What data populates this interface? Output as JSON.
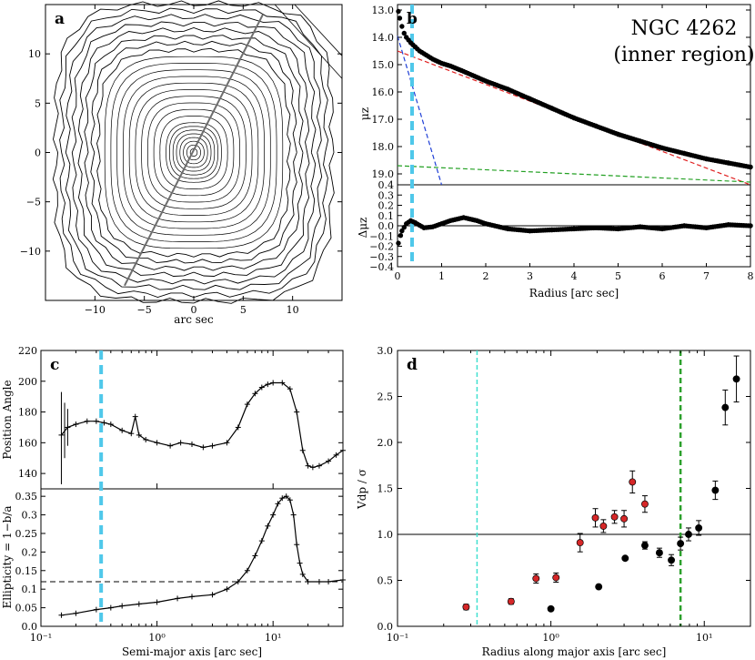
{
  "chart_data": [
    {
      "panel": "a",
      "type": "contour",
      "panel_label": "a",
      "xlabel": "arc sec",
      "x_ticks": [
        "−10",
        "−5",
        "0",
        "5",
        "10"
      ],
      "y_ticks": [
        "10",
        "5",
        "0",
        "−5",
        "−10"
      ],
      "xlim": [
        -15,
        15
      ],
      "ylim": [
        -15,
        15
      ],
      "major_axis_line": {
        "from": [
          -7,
          -13.5
        ],
        "to": [
          7,
          14
        ]
      }
    },
    {
      "panel": "b",
      "type": "scatter",
      "panel_label": "b",
      "title_line1": "NGC 4262",
      "title_line2": "(inner region)",
      "xlabel": "Radius [arc sec]",
      "ylabel_top": "μz",
      "ylabel_bottom": "Δμz",
      "x_ticks": [
        "0",
        "1",
        "2",
        "3",
        "4",
        "5",
        "6",
        "7",
        "8"
      ],
      "y_ticks_top": [
        "13.0",
        "14.0",
        "15.0",
        "16.0",
        "17.0",
        "18.0",
        "19.0",
        "0.4"
      ],
      "y_ticks_bottom": [
        "0.4",
        "0.3",
        "0.2",
        "0.1",
        "0.0",
        "−0.1",
        "−0.2",
        "−0.3",
        "−0.4"
      ],
      "xlim": [
        0,
        8
      ],
      "ylim_top": [
        19.4,
        12.8
      ],
      "ylim_bottom": [
        -0.4,
        0.4
      ],
      "vline_x": 0.33,
      "series": [
        {
          "name": "profile",
          "x": [
            0.02,
            0.05,
            0.1,
            0.15,
            0.2,
            0.3,
            0.4,
            0.5,
            0.6,
            0.8,
            1.0,
            1.2,
            1.5,
            2.0,
            2.5,
            3.0,
            3.5,
            4.0,
            4.5,
            5.0,
            5.5,
            6.0,
            6.5,
            7.0,
            7.5,
            8.0
          ],
          "y": [
            13.05,
            13.3,
            13.6,
            13.85,
            14.0,
            14.2,
            14.35,
            14.5,
            14.6,
            14.8,
            14.95,
            15.05,
            15.25,
            15.6,
            15.9,
            16.25,
            16.6,
            16.95,
            17.25,
            17.55,
            17.8,
            18.05,
            18.25,
            18.45,
            18.6,
            18.75
          ]
        },
        {
          "name": "inner component",
          "x": [
            0.0,
            1.0
          ],
          "y": [
            13.95,
            19.4
          ]
        },
        {
          "name": "exponential",
          "x": [
            0.0,
            8.0
          ],
          "y": [
            14.5,
            19.5
          ]
        },
        {
          "name": "outer component",
          "x": [
            0.0,
            8.0
          ],
          "y": [
            18.7,
            19.3
          ]
        },
        {
          "name": "residuals",
          "x": [
            0.02,
            0.1,
            0.2,
            0.3,
            0.4,
            0.6,
            0.8,
            1.0,
            1.2,
            1.5,
            1.8,
            2.0,
            2.5,
            3.0,
            3.5,
            4.0,
            4.5,
            5.0,
            5.5,
            6.0,
            6.5,
            7.0,
            7.5,
            8.0
          ],
          "y": [
            -0.17,
            -0.05,
            0.02,
            0.05,
            0.03,
            -0.02,
            -0.01,
            0.02,
            0.05,
            0.08,
            0.05,
            0.02,
            -0.03,
            -0.05,
            -0.04,
            -0.03,
            -0.02,
            -0.03,
            -0.01,
            -0.03,
            0.0,
            -0.02,
            0.01,
            0.0
          ]
        }
      ]
    },
    {
      "panel": "c",
      "type": "line",
      "panel_label": "c",
      "xlabel": "Semi-major axis [arc sec]",
      "ylabel_top": "Position Angle",
      "ylabel_bottom": "Ellipticity = 1−b/a",
      "x_ticks": [
        "10⁻¹",
        "10⁰",
        "10¹"
      ],
      "y_ticks_top": [
        "220",
        "200",
        "180",
        "160",
        "140"
      ],
      "y_ticks_bottom": [
        "0.35",
        "0.3",
        "0.25",
        "0.2",
        "0.15",
        "0.1",
        "0.05",
        "0.0"
      ],
      "xlim": [
        0.1,
        40
      ],
      "ylim_top": [
        130,
        220
      ],
      "ylim_bottom": [
        0.0,
        0.37
      ],
      "vline_x": 0.33,
      "hline_ellipticity": 0.12,
      "series": [
        {
          "name": "position angle",
          "x": [
            0.15,
            0.17,
            0.2,
            0.25,
            0.3,
            0.35,
            0.4,
            0.5,
            0.6,
            0.65,
            0.7,
            0.8,
            1.0,
            1.3,
            1.6,
            2.0,
            2.5,
            3.0,
            4.0,
            5.0,
            6.0,
            7.0,
            8.0,
            9.0,
            10.0,
            12.0,
            14.0,
            16.0,
            18.0,
            20.0,
            22.0,
            25.0,
            30.0,
            35.0,
            40.0
          ],
          "y": [
            165,
            170,
            172,
            174,
            174,
            173,
            172,
            168,
            166,
            177,
            165,
            162,
            160,
            158,
            160,
            159,
            157,
            158,
            160,
            170,
            185,
            192,
            196,
            198,
            199,
            199,
            195,
            180,
            155,
            145,
            144,
            145,
            148,
            152,
            155
          ]
        },
        {
          "name": "ellipticity",
          "x": [
            0.15,
            0.2,
            0.3,
            0.4,
            0.5,
            0.7,
            1.0,
            1.5,
            2.0,
            3.0,
            4.0,
            5.0,
            6.0,
            7.0,
            8.0,
            9.0,
            10.0,
            11.0,
            12.0,
            13.0,
            14.0,
            15.0,
            16.0,
            17.0,
            18.0,
            20.0,
            25.0,
            30.0,
            40.0
          ],
          "y": [
            0.03,
            0.035,
            0.045,
            0.05,
            0.055,
            0.06,
            0.065,
            0.075,
            0.08,
            0.085,
            0.1,
            0.12,
            0.15,
            0.19,
            0.23,
            0.27,
            0.3,
            0.33,
            0.345,
            0.35,
            0.34,
            0.3,
            0.22,
            0.17,
            0.14,
            0.12,
            0.12,
            0.12,
            0.125
          ]
        }
      ]
    },
    {
      "panel": "d",
      "type": "scatter",
      "panel_label": "d",
      "xlabel": "Radius along major axis [arc sec]",
      "ylabel": "Vdp / σ",
      "x_ticks": [
        "10⁻¹",
        "10⁰",
        "10¹"
      ],
      "y_ticks": [
        "3.0",
        "2.5",
        "2.0",
        "1.5",
        "1.0",
        "0.5",
        "0.0"
      ],
      "xlim": [
        0.1,
        20
      ],
      "ylim": [
        0.0,
        3.0
      ],
      "hline_y": 1.0,
      "vline_cyan_x": 0.33,
      "vline_green_x": 7.0,
      "series": [
        {
          "name": "red",
          "color": "#d62728",
          "x": [
            0.28,
            0.55,
            0.8,
            1.08,
            1.55,
            1.95,
            2.2,
            2.6,
            3.0,
            3.4,
            4.1
          ],
          "y": [
            0.21,
            0.27,
            0.52,
            0.53,
            0.91,
            1.18,
            1.09,
            1.19,
            1.17,
            1.57,
            1.33
          ],
          "err": [
            0.03,
            0.03,
            0.05,
            0.05,
            0.1,
            0.1,
            0.07,
            0.07,
            0.09,
            0.12,
            0.09
          ]
        },
        {
          "name": "black",
          "color": "#000000",
          "x": [
            1.0,
            2.05,
            3.05,
            4.1,
            5.1,
            6.1,
            7.0,
            7.9,
            9.2,
            11.8,
            13.7,
            16.2
          ],
          "y": [
            0.19,
            0.43,
            0.74,
            0.88,
            0.8,
            0.72,
            0.9,
            1.0,
            1.07,
            1.48,
            2.38,
            2.69
          ],
          "err": [
            0.0,
            0.0,
            0.0,
            0.04,
            0.05,
            0.06,
            0.07,
            0.07,
            0.08,
            0.1,
            0.19,
            0.25
          ]
        }
      ]
    }
  ]
}
